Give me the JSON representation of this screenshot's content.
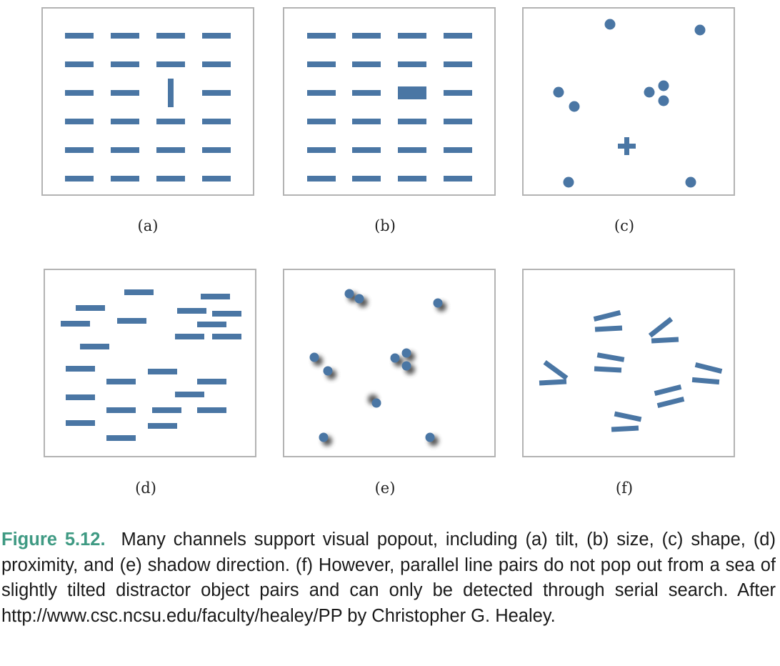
{
  "colors": {
    "mark": "#4a76a4",
    "panel_border": "#b3b3b3",
    "figure_label": "#3f9a83",
    "text": "#1a1a1a"
  },
  "panels": [
    {
      "id": "a",
      "label": "(a)",
      "feature": "tilt"
    },
    {
      "id": "b",
      "label": "(b)",
      "feature": "size"
    },
    {
      "id": "c",
      "label": "(c)",
      "feature": "shape"
    },
    {
      "id": "d",
      "label": "(d)",
      "feature": "proximity"
    },
    {
      "id": "e",
      "label": "(e)",
      "feature": "shadow direction"
    },
    {
      "id": "f",
      "label": "(f)",
      "feature": "parallel line pairs"
    }
  ],
  "caption": {
    "figure_label": "Figure 5.12.",
    "text": "Many channels support visual popout, including (a) tilt, (b) size, (c) shape, (d) proximity, and (e) shadow direction. (f) However, parallel line pairs do not pop out from a sea of slightly tilted distractor object pairs and can only be detected through serial search. After http://www.csc.ncsu.edu/faculty/healey/PP by Christopher G. Healey."
  }
}
